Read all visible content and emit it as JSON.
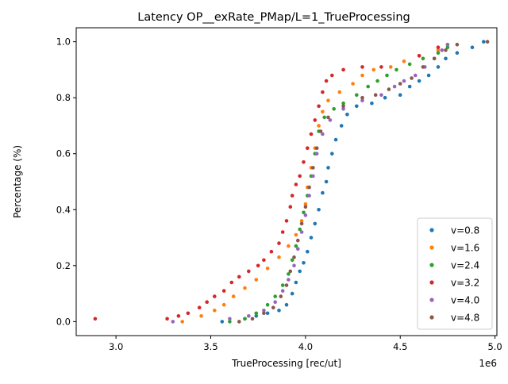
{
  "chart_data": {
    "type": "scatter",
    "title": "Latency OP__exRate_PMap/L=1_TrueProcessing",
    "xlabel": "TrueProcessing [rec/ut]",
    "ylabel": "Percentage (%)",
    "x_multiplier_label": "1e6",
    "xlim": [
      2.79,
      5.01
    ],
    "ylim": [
      -0.05,
      1.05
    ],
    "x_ticks": [
      3.0,
      3.5,
      4.0,
      4.5,
      5.0
    ],
    "x_tick_labels": [
      "3.0",
      "3.5",
      "4.0",
      "4.5",
      "5.0"
    ],
    "y_ticks": [
      0.0,
      0.2,
      0.4,
      0.6,
      0.8,
      1.0
    ],
    "y_tick_labels": [
      "0.0",
      "0.2",
      "0.4",
      "0.6",
      "0.8",
      "1.0"
    ],
    "grid": false,
    "legend_position": "lower-right",
    "series": [
      {
        "name": "v=0.8",
        "color": "#1f77b4",
        "points": [
          [
            3.56,
            0.0
          ],
          [
            3.68,
            0.01
          ],
          [
            3.74,
            0.02
          ],
          [
            3.8,
            0.03
          ],
          [
            3.86,
            0.04
          ],
          [
            3.9,
            0.06
          ],
          [
            3.93,
            0.1
          ],
          [
            3.95,
            0.14
          ],
          [
            3.97,
            0.18
          ],
          [
            3.99,
            0.21
          ],
          [
            4.01,
            0.25
          ],
          [
            4.03,
            0.3
          ],
          [
            4.05,
            0.35
          ],
          [
            4.07,
            0.4
          ],
          [
            4.09,
            0.46
          ],
          [
            4.11,
            0.5
          ],
          [
            4.12,
            0.55
          ],
          [
            4.14,
            0.6
          ],
          [
            4.16,
            0.65
          ],
          [
            4.19,
            0.7
          ],
          [
            4.22,
            0.74
          ],
          [
            4.27,
            0.77
          ],
          [
            4.35,
            0.78
          ],
          [
            4.42,
            0.8
          ],
          [
            4.5,
            0.81
          ],
          [
            4.55,
            0.84
          ],
          [
            4.6,
            0.86
          ],
          [
            4.65,
            0.88
          ],
          [
            4.7,
            0.91
          ],
          [
            4.74,
            0.94
          ],
          [
            4.8,
            0.96
          ],
          [
            4.88,
            0.98
          ],
          [
            4.94,
            1.0
          ]
        ]
      },
      {
        "name": "v=1.6",
        "color": "#ff7f0e",
        "points": [
          [
            3.35,
            0.0
          ],
          [
            3.45,
            0.02
          ],
          [
            3.52,
            0.04
          ],
          [
            3.57,
            0.06
          ],
          [
            3.62,
            0.09
          ],
          [
            3.68,
            0.12
          ],
          [
            3.74,
            0.15
          ],
          [
            3.8,
            0.19
          ],
          [
            3.86,
            0.23
          ],
          [
            3.91,
            0.27
          ],
          [
            3.95,
            0.31
          ],
          [
            3.98,
            0.36
          ],
          [
            4.0,
            0.42
          ],
          [
            4.01,
            0.48
          ],
          [
            4.03,
            0.55
          ],
          [
            4.05,
            0.62
          ],
          [
            4.07,
            0.7
          ],
          [
            4.09,
            0.75
          ],
          [
            4.12,
            0.79
          ],
          [
            4.18,
            0.82
          ],
          [
            4.25,
            0.85
          ],
          [
            4.3,
            0.88
          ],
          [
            4.36,
            0.9
          ],
          [
            4.45,
            0.91
          ],
          [
            4.52,
            0.93
          ],
          [
            4.6,
            0.95
          ],
          [
            4.7,
            0.97
          ],
          [
            4.75,
            0.99
          ]
        ]
      },
      {
        "name": "v=2.4",
        "color": "#2ca02c",
        "points": [
          [
            3.6,
            0.0
          ],
          [
            3.68,
            0.01
          ],
          [
            3.74,
            0.03
          ],
          [
            3.8,
            0.06
          ],
          [
            3.84,
            0.09
          ],
          [
            3.88,
            0.13
          ],
          [
            3.91,
            0.17
          ],
          [
            3.93,
            0.22
          ],
          [
            3.95,
            0.27
          ],
          [
            3.97,
            0.33
          ],
          [
            3.99,
            0.39
          ],
          [
            4.01,
            0.45
          ],
          [
            4.03,
            0.52
          ],
          [
            4.05,
            0.6
          ],
          [
            4.07,
            0.68
          ],
          [
            4.1,
            0.73
          ],
          [
            4.15,
            0.76
          ],
          [
            4.2,
            0.78
          ],
          [
            4.27,
            0.81
          ],
          [
            4.33,
            0.84
          ],
          [
            4.38,
            0.86
          ],
          [
            4.43,
            0.88
          ],
          [
            4.48,
            0.9
          ],
          [
            4.55,
            0.92
          ],
          [
            4.62,
            0.94
          ],
          [
            4.7,
            0.96
          ],
          [
            4.75,
            0.98
          ]
        ]
      },
      {
        "name": "v=3.2",
        "color": "#d62728",
        "points": [
          [
            2.89,
            0.01
          ],
          [
            3.27,
            0.01
          ],
          [
            3.33,
            0.02
          ],
          [
            3.38,
            0.03
          ],
          [
            3.44,
            0.05
          ],
          [
            3.48,
            0.07
          ],
          [
            3.52,
            0.09
          ],
          [
            3.57,
            0.11
          ],
          [
            3.61,
            0.14
          ],
          [
            3.65,
            0.16
          ],
          [
            3.7,
            0.18
          ],
          [
            3.75,
            0.2
          ],
          [
            3.78,
            0.22
          ],
          [
            3.82,
            0.25
          ],
          [
            3.86,
            0.28
          ],
          [
            3.88,
            0.32
          ],
          [
            3.9,
            0.36
          ],
          [
            3.92,
            0.41
          ],
          [
            3.93,
            0.45
          ],
          [
            3.95,
            0.49
          ],
          [
            3.97,
            0.52
          ],
          [
            3.99,
            0.57
          ],
          [
            4.01,
            0.62
          ],
          [
            4.03,
            0.67
          ],
          [
            4.05,
            0.72
          ],
          [
            4.07,
            0.77
          ],
          [
            4.09,
            0.82
          ],
          [
            4.11,
            0.86
          ],
          [
            4.14,
            0.88
          ],
          [
            4.2,
            0.9
          ],
          [
            4.3,
            0.91
          ],
          [
            4.4,
            0.91
          ],
          [
            4.6,
            0.95
          ],
          [
            4.7,
            0.98
          ]
        ]
      },
      {
        "name": "v=4.0",
        "color": "#9467bd",
        "points": [
          [
            3.3,
            0.0
          ],
          [
            3.6,
            0.01
          ],
          [
            3.7,
            0.02
          ],
          [
            3.78,
            0.04
          ],
          [
            3.84,
            0.07
          ],
          [
            3.88,
            0.11
          ],
          [
            3.91,
            0.15
          ],
          [
            3.94,
            0.2
          ],
          [
            3.96,
            0.26
          ],
          [
            3.98,
            0.32
          ],
          [
            4.0,
            0.38
          ],
          [
            4.02,
            0.45
          ],
          [
            4.04,
            0.52
          ],
          [
            4.06,
            0.6
          ],
          [
            4.09,
            0.67
          ],
          [
            4.13,
            0.72
          ],
          [
            4.2,
            0.76
          ],
          [
            4.3,
            0.79
          ],
          [
            4.4,
            0.81
          ],
          [
            4.47,
            0.84
          ],
          [
            4.52,
            0.86
          ],
          [
            4.58,
            0.88
          ],
          [
            4.63,
            0.91
          ],
          [
            4.68,
            0.94
          ],
          [
            4.72,
            0.97
          ],
          [
            4.75,
            0.99
          ]
        ]
      },
      {
        "name": "v=4.8",
        "color": "#8c564b",
        "points": [
          [
            3.65,
            0.0
          ],
          [
            3.72,
            0.01
          ],
          [
            3.78,
            0.03
          ],
          [
            3.83,
            0.05
          ],
          [
            3.87,
            0.09
          ],
          [
            3.9,
            0.13
          ],
          [
            3.92,
            0.18
          ],
          [
            3.94,
            0.23
          ],
          [
            3.96,
            0.29
          ],
          [
            3.98,
            0.35
          ],
          [
            4.0,
            0.41
          ],
          [
            4.02,
            0.48
          ],
          [
            4.04,
            0.55
          ],
          [
            4.06,
            0.62
          ],
          [
            4.08,
            0.68
          ],
          [
            4.12,
            0.73
          ],
          [
            4.2,
            0.77
          ],
          [
            4.3,
            0.8
          ],
          [
            4.37,
            0.81
          ],
          [
            4.44,
            0.83
          ],
          [
            4.5,
            0.85
          ],
          [
            4.56,
            0.87
          ],
          [
            4.62,
            0.91
          ],
          [
            4.68,
            0.94
          ],
          [
            4.74,
            0.97
          ],
          [
            4.8,
            0.99
          ],
          [
            4.96,
            1.0
          ]
        ]
      }
    ]
  }
}
